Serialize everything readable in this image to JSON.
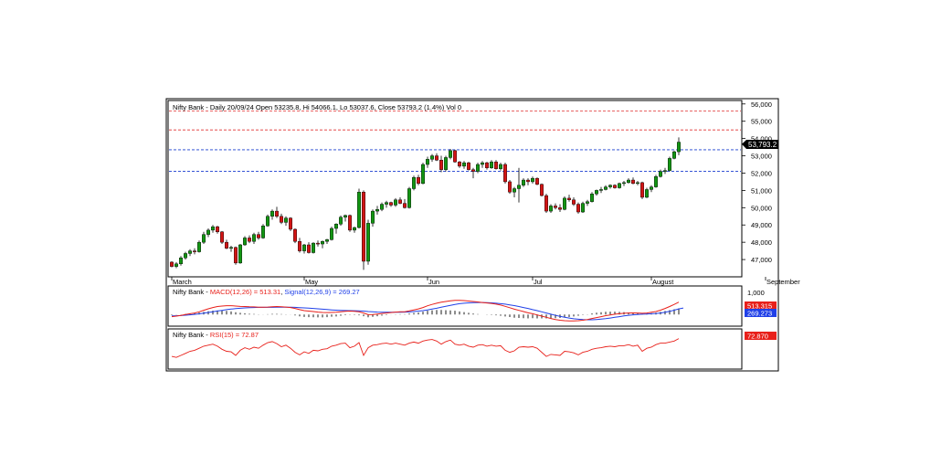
{
  "colors": {
    "up": "#129612",
    "down": "#d21414",
    "macd_line": "#e8201a",
    "signal_line": "#2040e8",
    "rsi_line": "#e8201a",
    "blue_level": "#1a3ccf",
    "red_level": "#e03030",
    "frame": "#000000"
  },
  "chart_data": [
    {
      "type": "candlestick",
      "title": "Nifty Bank - Daily 20/09/24 Open 53235.8, Hi 54066.1, Lo 53037.6, Close 53793.2 (1.4%) Vol 0",
      "ylim": [
        46000,
        56200
      ],
      "y_ticks": [
        {
          "value": 56000,
          "label": "56,000"
        },
        {
          "value": 55000,
          "label": "55,000"
        },
        {
          "value": 54000,
          "label": "54,000"
        },
        {
          "value": 53000,
          "label": "53,000"
        },
        {
          "value": 52000,
          "label": "52,000"
        },
        {
          "value": 51000,
          "label": "51,000"
        },
        {
          "value": 50000,
          "label": "50,000"
        },
        {
          "value": 49000,
          "label": "49,000"
        },
        {
          "value": 48000,
          "label": "48,000"
        },
        {
          "value": 47000,
          "label": "47,000"
        }
      ],
      "x_labels": [
        {
          "index": 0,
          "label": "March"
        },
        {
          "index": 29,
          "label": "May"
        },
        {
          "index": 56,
          "label": "Jun"
        },
        {
          "index": 79,
          "label": "Jul"
        },
        {
          "index": 105,
          "label": "August"
        },
        {
          "index": 130,
          "label": "September"
        }
      ],
      "last_close_label": "53,793.2",
      "levels": [
        {
          "value": 55600,
          "style": "red-dashed"
        },
        {
          "value": 54500,
          "style": "red-dashed"
        },
        {
          "value": 53350,
          "style": "blue-dashed"
        },
        {
          "value": 52100,
          "style": "blue-dashed"
        }
      ],
      "ohlc": [
        [
          46850,
          46900,
          46550,
          46600
        ],
        [
          46600,
          46850,
          46500,
          46750
        ],
        [
          46750,
          47200,
          46650,
          47100
        ],
        [
          47100,
          47450,
          47000,
          47350
        ],
        [
          47350,
          47600,
          47200,
          47500
        ],
        [
          47500,
          47650,
          47300,
          47450
        ],
        [
          47450,
          48100,
          47400,
          48000
        ],
        [
          48000,
          48600,
          47900,
          48450
        ],
        [
          48450,
          48800,
          48300,
          48700
        ],
        [
          48700,
          49000,
          48550,
          48900
        ],
        [
          48900,
          48950,
          48500,
          48600
        ],
        [
          48600,
          48650,
          47900,
          48000
        ],
        [
          48000,
          48150,
          47600,
          47650
        ],
        [
          47650,
          47800,
          47450,
          47700
        ],
        [
          47700,
          47750,
          46700,
          46800
        ],
        [
          46800,
          47900,
          46750,
          47850
        ],
        [
          47850,
          48350,
          47800,
          48250
        ],
        [
          48250,
          48400,
          47950,
          48050
        ],
        [
          48050,
          48550,
          47900,
          48450
        ],
        [
          48450,
          48600,
          48150,
          48250
        ],
        [
          48250,
          49050,
          48200,
          48950
        ],
        [
          48950,
          49600,
          48900,
          49500
        ],
        [
          49500,
          49900,
          49300,
          49800
        ],
        [
          49800,
          50050,
          49400,
          49500
        ],
        [
          49500,
          49650,
          49050,
          49150
        ],
        [
          49150,
          49500,
          48950,
          49400
        ],
        [
          49400,
          49450,
          48650,
          48750
        ],
        [
          48750,
          48800,
          47950,
          48050
        ],
        [
          48050,
          48250,
          47400,
          47500
        ],
        [
          47500,
          47900,
          47350,
          47850
        ],
        [
          47850,
          48000,
          47350,
          47400
        ],
        [
          47400,
          48000,
          47350,
          47950
        ],
        [
          47950,
          48100,
          47750,
          47900
        ],
        [
          47900,
          48100,
          47650,
          48050
        ],
        [
          48050,
          48200,
          47900,
          48150
        ],
        [
          48150,
          48900,
          48100,
          48800
        ],
        [
          48800,
          49100,
          48500,
          49050
        ],
        [
          49050,
          49550,
          48950,
          49450
        ],
        [
          49450,
          49600,
          49200,
          49550
        ],
        [
          49550,
          49600,
          48600,
          48700
        ],
        [
          48700,
          48900,
          48550,
          48850
        ],
        [
          48850,
          51100,
          48800,
          50900
        ],
        [
          50900,
          51000,
          46400,
          46900
        ],
        [
          46900,
          49300,
          46700,
          49100
        ],
        [
          49100,
          49900,
          48900,
          49800
        ],
        [
          49800,
          50100,
          49600,
          49900
        ],
        [
          49900,
          50300,
          49800,
          50200
        ],
        [
          50200,
          50400,
          50000,
          50300
        ],
        [
          50300,
          50350,
          50050,
          50150
        ],
        [
          50150,
          50550,
          50050,
          50450
        ],
        [
          50450,
          50600,
          50200,
          50250
        ],
        [
          50250,
          50500,
          49950,
          50000
        ],
        [
          50000,
          51200,
          49950,
          51100
        ],
        [
          51100,
          51850,
          51000,
          51750
        ],
        [
          51750,
          51900,
          51300,
          51400
        ],
        [
          51400,
          52600,
          51350,
          52500
        ],
        [
          52500,
          52950,
          52300,
          52800
        ],
        [
          52800,
          53100,
          52650,
          53000
        ],
        [
          53000,
          53150,
          52700,
          52750
        ],
        [
          52750,
          53000,
          52050,
          52200
        ],
        [
          52200,
          53000,
          52100,
          52900
        ],
        [
          52900,
          53400,
          52800,
          53300
        ],
        [
          53300,
          53350,
          52600,
          52650
        ],
        [
          52650,
          52700,
          52300,
          52400
        ],
        [
          52400,
          52700,
          52250,
          52600
        ],
        [
          52600,
          52650,
          52150,
          52200
        ],
        [
          52200,
          52300,
          51700,
          52100
        ],
        [
          52100,
          52600,
          52000,
          52500
        ],
        [
          52500,
          52700,
          52300,
          52600
        ],
        [
          52600,
          52650,
          52200,
          52300
        ],
        [
          52300,
          52750,
          52250,
          52650
        ],
        [
          52650,
          52750,
          52200,
          52250
        ],
        [
          52250,
          52600,
          52150,
          52500
        ],
        [
          52500,
          52600,
          51400,
          51500
        ],
        [
          51500,
          51600,
          50800,
          50900
        ],
        [
          50900,
          51200,
          50600,
          51100
        ],
        [
          51100,
          52300,
          50300,
          51300
        ],
        [
          51300,
          51700,
          51200,
          51600
        ],
        [
          51600,
          51700,
          51300,
          51500
        ],
        [
          51500,
          51800,
          51400,
          51700
        ],
        [
          51700,
          51750,
          51300,
          51350
        ],
        [
          51350,
          51400,
          50650,
          50700
        ],
        [
          50700,
          50800,
          49700,
          49800
        ],
        [
          49800,
          50200,
          49700,
          50100
        ],
        [
          50100,
          50250,
          49900,
          50000
        ],
        [
          50000,
          50200,
          49750,
          49900
        ],
        [
          49900,
          50650,
          49850,
          50550
        ],
        [
          50550,
          50750,
          50350,
          50450
        ],
        [
          50450,
          50600,
          50100,
          50200
        ],
        [
          50200,
          50300,
          49650,
          49750
        ],
        [
          49750,
          50350,
          49700,
          50250
        ],
        [
          50250,
          50450,
          50100,
          50350
        ],
        [
          50350,
          50900,
          50300,
          50800
        ],
        [
          50800,
          51050,
          50700,
          51000
        ],
        [
          51000,
          51200,
          50850,
          51050
        ],
        [
          51050,
          51300,
          51000,
          51200
        ],
        [
          51200,
          51350,
          51100,
          51300
        ],
        [
          51300,
          51350,
          51100,
          51150
        ],
        [
          51150,
          51450,
          51100,
          51400
        ],
        [
          51400,
          51550,
          51250,
          51450
        ],
        [
          51450,
          51700,
          51400,
          51600
        ],
        [
          51600,
          51750,
          51350,
          51400
        ],
        [
          51400,
          51550,
          51300,
          51450
        ],
        [
          51450,
          51500,
          50500,
          50600
        ],
        [
          50600,
          51150,
          50550,
          51050
        ],
        [
          51050,
          51300,
          50900,
          51200
        ],
        [
          51200,
          51900,
          51150,
          51800
        ],
        [
          51800,
          52200,
          51750,
          52100
        ],
        [
          52100,
          52300,
          51950,
          52150
        ],
        [
          52150,
          52950,
          52100,
          52850
        ],
        [
          52850,
          53300,
          52800,
          53235.8
        ],
        [
          53235.8,
          54066.1,
          53037.6,
          53793.2
        ]
      ]
    },
    {
      "type": "line",
      "title": "Nifty Bank - MACD(12,26) = 513.31, Signal(12,26,9) = 269.27",
      "series": [
        {
          "name": "MACD(12,26)",
          "color": "macd_line",
          "values": [
            -90,
            -70,
            -40,
            -5,
            30,
            60,
            110,
            175,
            235,
            290,
            330,
            350,
            365,
            365,
            350,
            335,
            330,
            320,
            315,
            305,
            300,
            310,
            325,
            330,
            320,
            310,
            290,
            250,
            200,
            160,
            140,
            120,
            100,
            85,
            80,
            85,
            90,
            110,
            130,
            140,
            130,
            110,
            60,
            -10,
            0,
            20,
            40,
            60,
            80,
            100,
            110,
            115,
            150,
            190,
            230,
            290,
            360,
            420,
            470,
            510,
            540,
            570,
            590,
            590,
            580,
            560,
            540,
            520,
            500,
            480,
            460,
            430,
            390,
            340,
            280,
            220,
            170,
            120,
            70,
            30,
            -20,
            -70,
            -120,
            -170,
            -210,
            -240,
            -260,
            -270,
            -270,
            -260,
            -240,
            -210,
            -170,
            -130,
            -90,
            -50,
            -20,
            10,
            30,
            50,
            60,
            65,
            60,
            50,
            60,
            90,
            120,
            180,
            250,
            330,
            420,
            513.31
          ]
        },
        {
          "name": "Signal(12,26,9)",
          "color": "signal_line",
          "values": [
            -60,
            -55,
            -45,
            -30,
            -15,
            5,
            25,
            55,
            85,
            115,
            145,
            170,
            200,
            225,
            245,
            260,
            275,
            285,
            290,
            295,
            295,
            295,
            295,
            300,
            300,
            300,
            300,
            295,
            285,
            275,
            265,
            250,
            235,
            220,
            205,
            190,
            180,
            170,
            165,
            160,
            155,
            150,
            140,
            120,
            110,
            100,
            95,
            90,
            90,
            90,
            95,
            100,
            105,
            120,
            140,
            160,
            190,
            225,
            260,
            300,
            340,
            380,
            420,
            450,
            470,
            485,
            495,
            500,
            500,
            495,
            485,
            470,
            450,
            430,
            400,
            370,
            330,
            290,
            250,
            200,
            160,
            110,
            60,
            10,
            -40,
            -80,
            -120,
            -150,
            -180,
            -200,
            -215,
            -220,
            -220,
            -210,
            -195,
            -175,
            -150,
            -120,
            -90,
            -60,
            -35,
            -15,
            0,
            10,
            20,
            30,
            40,
            60,
            90,
            130,
            180,
            230,
            269.27
          ]
        }
      ],
      "histogram": "macd_minus_signal",
      "ylim": [
        -450,
        1150
      ],
      "y_ticks": [
        {
          "value": 1000,
          "label": "1,000"
        }
      ],
      "value_labels": {
        "macd": "513.315",
        "signal": "269.273"
      }
    },
    {
      "type": "line",
      "title": "Nifty Bank - RSI(15) = 72.87",
      "series": [
        {
          "name": "RSI(15)",
          "color": "rsi_line",
          "values": [
            38,
            36,
            40,
            44,
            48,
            50,
            54,
            58,
            60,
            62,
            58,
            52,
            48,
            47,
            40,
            50,
            55,
            52,
            56,
            54,
            60,
            65,
            67,
            63,
            57,
            60,
            54,
            46,
            41,
            47,
            44,
            50,
            49,
            52,
            53,
            58,
            60,
            63,
            64,
            55,
            58,
            65,
            40,
            55,
            60,
            61,
            63,
            64,
            62,
            64,
            62,
            60,
            64,
            66,
            64,
            68,
            70,
            71,
            68,
            62,
            67,
            70,
            62,
            60,
            62,
            58,
            56,
            60,
            61,
            58,
            60,
            58,
            59,
            50,
            46,
            49,
            56,
            57,
            56,
            57,
            54,
            46,
            38,
            42,
            41,
            40,
            48,
            47,
            45,
            41,
            46,
            48,
            52,
            54,
            55,
            57,
            58,
            57,
            59,
            59,
            61,
            58,
            60,
            48,
            54,
            56,
            61,
            64,
            64,
            66,
            68,
            72.87
          ]
        }
      ],
      "ylim": [
        15,
        90
      ],
      "value_labels": {
        "rsi": "72.870"
      }
    }
  ]
}
